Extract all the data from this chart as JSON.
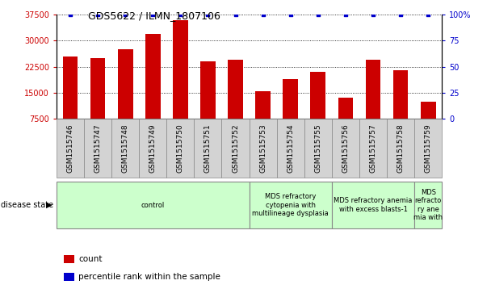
{
  "title": "GDS5622 / ILMN_1807106",
  "samples": [
    "GSM1515746",
    "GSM1515747",
    "GSM1515748",
    "GSM1515749",
    "GSM1515750",
    "GSM1515751",
    "GSM1515752",
    "GSM1515753",
    "GSM1515754",
    "GSM1515755",
    "GSM1515756",
    "GSM1515757",
    "GSM1515758",
    "GSM1515759"
  ],
  "counts": [
    25500,
    25000,
    27500,
    32000,
    36000,
    24000,
    24500,
    15500,
    19000,
    21000,
    13500,
    24500,
    21500,
    12500
  ],
  "percentile_ranks": [
    100,
    100,
    100,
    100,
    100,
    100,
    100,
    100,
    100,
    100,
    100,
    100,
    100,
    100
  ],
  "bar_color": "#cc0000",
  "dot_color": "#0000cc",
  "ylim_left": [
    7500,
    37500
  ],
  "ylim_right": [
    0,
    100
  ],
  "yticks_left": [
    7500,
    15000,
    22500,
    30000,
    37500
  ],
  "yticks_right": [
    0,
    25,
    50,
    75,
    100
  ],
  "disease_groups": [
    {
      "label": "control",
      "start": 0,
      "end": 7,
      "color": "#ccffcc"
    },
    {
      "label": "MDS refractory\ncytopenia with\nmultilineage dysplasia",
      "start": 7,
      "end": 10,
      "color": "#ccffcc"
    },
    {
      "label": "MDS refractory anemia\nwith excess blasts-1",
      "start": 10,
      "end": 13,
      "color": "#ccffcc"
    },
    {
      "label": "MDS\nrefracto\nry ane\nmia with",
      "start": 13,
      "end": 14,
      "color": "#ccffcc"
    }
  ],
  "disease_state_label": "disease state",
  "legend_count_label": "count",
  "legend_percentile_label": "percentile rank within the sample",
  "background_color": "#ffffff",
  "tick_label_color_left": "#cc0000",
  "tick_label_color_right": "#0000cc"
}
